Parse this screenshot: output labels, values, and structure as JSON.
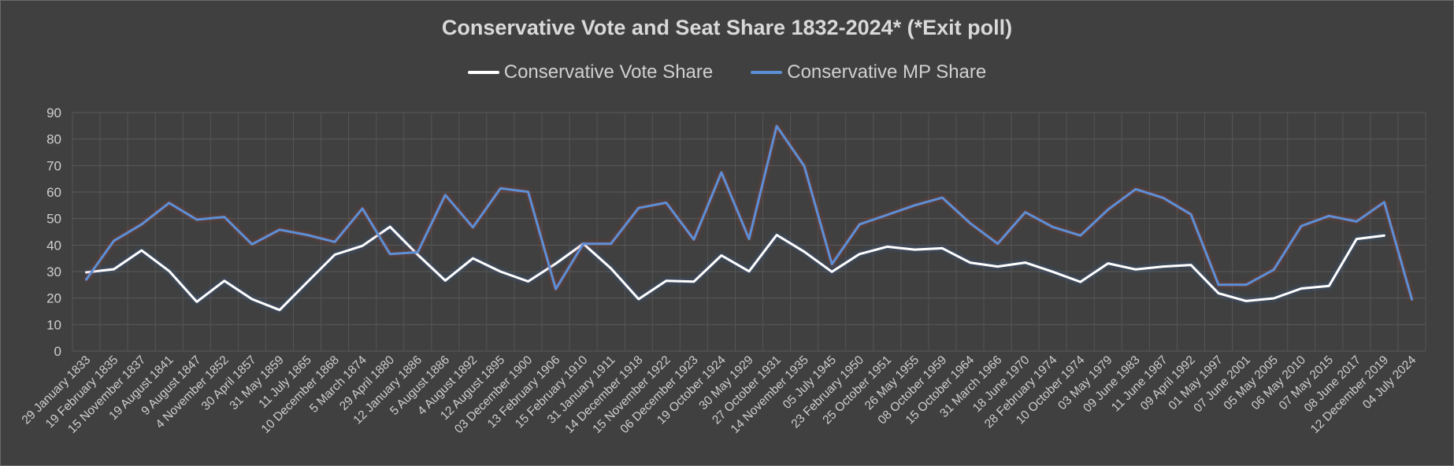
{
  "chart_data": {
    "type": "line",
    "title": "Conservative Vote and Seat Share 1832-2024* (*Exit poll)",
    "xlabel": "",
    "ylabel": "",
    "ylim": [
      0,
      90
    ],
    "yticks": [
      0,
      10,
      20,
      30,
      40,
      50,
      60,
      70,
      80,
      90
    ],
    "grid": true,
    "legend_position": "top",
    "categories": [
      "29 January 1833",
      "19 February 1835",
      "15 November 1837",
      "19 August 1841",
      "9 August 1847",
      "4 November 1852",
      "30 April 1857",
      "31 May 1859",
      "11 July 1865",
      "10 December 1868",
      "5 March 1874",
      "29 April 1880",
      "12 January 1886",
      "5 August 1886",
      "4 August 1892",
      "12 August 1895",
      "03 December 1900",
      "13 February 1906",
      "15 February 1910",
      "31 January 1911",
      "14 December 1918",
      "15 November 1922",
      "06 December 1923",
      "19 October 1924",
      "30 May 1929",
      "27 October 1931",
      "14 November 1935",
      "05 July 1945",
      "23 February 1950",
      "25 October 1951",
      "26 May 1955",
      "08 October 1959",
      "15 October 1964",
      "31 March 1966",
      "18 June 1970",
      "28 February 1974",
      "10 October 1974",
      "03 May 1979",
      "09 June 1983",
      "11 June 1987",
      "09 April 1992",
      "01 May 1997",
      "07 June 2001",
      "05 May 2005",
      "06 May 2010",
      "07 May 2015",
      "08 June 2017",
      "12 December 2019",
      "04 July 2024"
    ],
    "series": [
      {
        "name": "Conservative Vote Share",
        "color": "#ffffff",
        "values": [
          29.7,
          30.9,
          38.0,
          30.2,
          18.6,
          26.5,
          19.6,
          15.5,
          26.0,
          36.4,
          39.7,
          46.9,
          36.4,
          26.6,
          35.0,
          30.0,
          26.3,
          33.0,
          40.5,
          31.2,
          19.6,
          26.5,
          26.2,
          36.1,
          30.1,
          43.8,
          37.5,
          29.9,
          36.6,
          39.4,
          38.3,
          38.8,
          33.4,
          31.9,
          33.4,
          29.9,
          26.1,
          33.1,
          30.8,
          31.9,
          32.5,
          21.8,
          18.9,
          19.9,
          23.6,
          24.6,
          42.3,
          43.6,
          null
        ]
      },
      {
        "name": "Conservative MP Share",
        "color": "#5b8fd6",
        "values": [
          27.0,
          41.6,
          47.8,
          55.9,
          49.6,
          50.6,
          40.3,
          45.8,
          43.8,
          41.2,
          53.8,
          36.6,
          37.3,
          58.9,
          46.7,
          61.4,
          60.1,
          23.4,
          40.5,
          40.5,
          54.0,
          56.0,
          42.1,
          67.4,
          42.3,
          84.9,
          69.8,
          32.8,
          47.8,
          51.4,
          55.0,
          57.9,
          48.3,
          40.5,
          52.4,
          46.8,
          43.6,
          53.4,
          61.1,
          57.8,
          51.6,
          25.0,
          25.0,
          30.7,
          47.2,
          51.0,
          48.9,
          56.2,
          19.5
        ]
      }
    ]
  }
}
